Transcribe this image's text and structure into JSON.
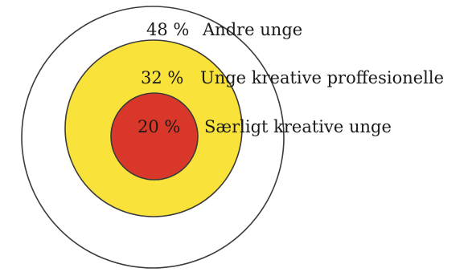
{
  "diagram": {
    "rings": [
      {
        "id": "outer",
        "percent": "48  %",
        "label": "Andre unge",
        "fill": "#ffffff"
      },
      {
        "id": "middle",
        "percent": "32  %",
        "label": "Unge kreative proffesionelle",
        "fill": "#f9e23a"
      },
      {
        "id": "inner",
        "percent": "20 %",
        "label": "Særligt kreative unge",
        "fill": "#d9372a"
      }
    ],
    "stroke_color": "#3a3a3a"
  }
}
